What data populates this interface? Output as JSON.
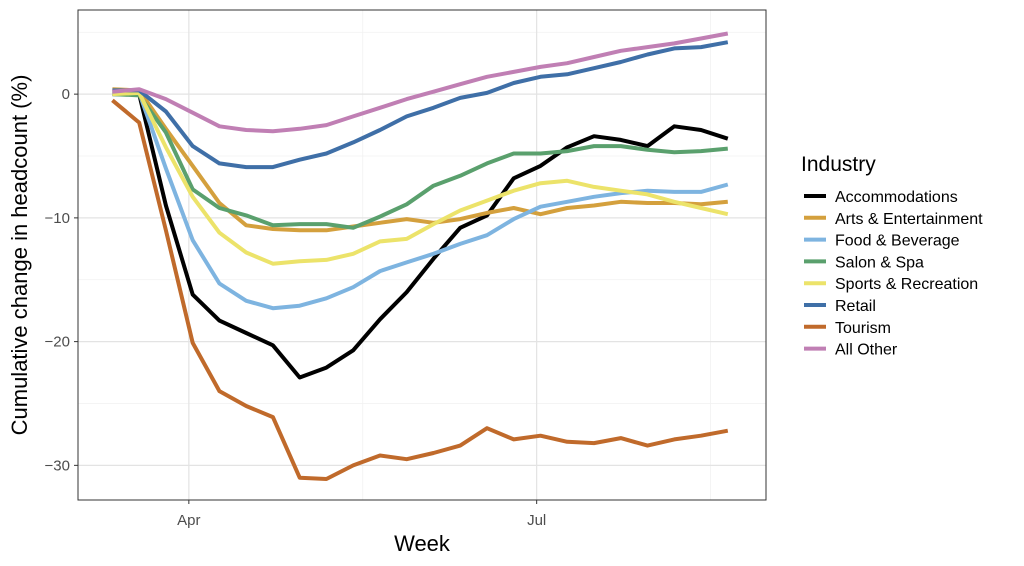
{
  "chart_data": {
    "type": "line",
    "xlabel": "Week",
    "ylabel": "Cumulative change in headcount (%)",
    "x_tick_labels": [
      {
        "date": "2020-04-01",
        "label": "Apr"
      },
      {
        "date": "2020-07-01",
        "label": "Jul"
      }
    ],
    "y_ticks": [
      0,
      -10,
      -20,
      -30
    ],
    "y_tick_labels": [
      "0",
      "−10",
      "−20",
      "−30"
    ],
    "xlim": [
      "2020-03-03",
      "2020-08-30"
    ],
    "ylim": [
      -32.8,
      6.8
    ],
    "grid": true,
    "legend": {
      "title": "Industry",
      "position": "right"
    },
    "x": [
      "2020-03-12",
      "2020-03-19",
      "2020-03-26",
      "2020-04-02",
      "2020-04-09",
      "2020-04-16",
      "2020-04-23",
      "2020-04-30",
      "2020-05-07",
      "2020-05-14",
      "2020-05-21",
      "2020-05-28",
      "2020-06-04",
      "2020-06-11",
      "2020-06-18",
      "2020-06-25",
      "2020-07-02",
      "2020-07-09",
      "2020-07-16",
      "2020-07-23",
      "2020-07-30",
      "2020-08-06",
      "2020-08-13",
      "2020-08-20"
    ],
    "series": [
      {
        "name": "Accommodations",
        "color": "#000000",
        "values": [
          0.0,
          0.0,
          -9.0,
          -16.2,
          -18.3,
          -19.3,
          -20.3,
          -22.9,
          -22.1,
          -20.7,
          -18.2,
          -16.0,
          -13.3,
          -10.8,
          -9.8,
          -6.8,
          -5.8,
          -4.3,
          -3.4,
          -3.7,
          -4.2,
          -2.6,
          -2.9,
          -3.6
        ]
      },
      {
        "name": "Arts & Entertainment",
        "color": "#d4a03d",
        "values": [
          0.4,
          0.3,
          -2.8,
          -5.8,
          -8.8,
          -10.6,
          -10.9,
          -11.0,
          -11.0,
          -10.7,
          -10.4,
          -10.1,
          -10.4,
          -10.1,
          -9.6,
          -9.2,
          -9.7,
          -9.2,
          -9.0,
          -8.7,
          -8.8,
          -8.8,
          -8.9,
          -8.7
        ]
      },
      {
        "name": "Food & Beverage",
        "color": "#7eb4e0",
        "values": [
          0.1,
          0.1,
          -6.0,
          -11.8,
          -15.3,
          -16.7,
          -17.3,
          -17.1,
          -16.5,
          -15.6,
          -14.3,
          -13.6,
          -12.9,
          -12.1,
          -11.4,
          -10.1,
          -9.1,
          -8.7,
          -8.3,
          -8.0,
          -7.8,
          -7.9,
          -7.9,
          -7.3
        ]
      },
      {
        "name": "Salon & Spa",
        "color": "#5aa06d",
        "values": [
          0.0,
          -0.1,
          -3.1,
          -7.7,
          -9.2,
          -9.8,
          -10.6,
          -10.5,
          -10.5,
          -10.8,
          -9.9,
          -8.9,
          -7.4,
          -6.6,
          -5.6,
          -4.8,
          -4.8,
          -4.6,
          -4.2,
          -4.2,
          -4.5,
          -4.7,
          -4.6,
          -4.4
        ]
      },
      {
        "name": "Sports & Recreation",
        "color": "#ece36a",
        "values": [
          0.0,
          0.1,
          -4.3,
          -8.3,
          -11.2,
          -12.8,
          -13.7,
          -13.5,
          -13.4,
          -12.9,
          -11.9,
          -11.7,
          -10.5,
          -9.4,
          -8.6,
          -7.8,
          -7.2,
          -7.0,
          -7.5,
          -7.8,
          -8.1,
          -8.7,
          -9.2,
          -9.7
        ]
      },
      {
        "name": "Retail",
        "color": "#3f6fa7",
        "values": [
          0.3,
          0.3,
          -1.4,
          -4.2,
          -5.6,
          -5.9,
          -5.9,
          -5.3,
          -4.8,
          -3.9,
          -2.9,
          -1.8,
          -1.1,
          -0.3,
          0.1,
          0.9,
          1.4,
          1.6,
          2.1,
          2.6,
          3.2,
          3.7,
          3.8,
          4.2
        ]
      },
      {
        "name": "Tourism",
        "color": "#c06a2b",
        "values": [
          -0.5,
          -2.3,
          -11.0,
          -20.1,
          -24.0,
          -25.2,
          -26.1,
          -31.0,
          -31.1,
          -30.0,
          -29.2,
          -29.5,
          -29.0,
          -28.4,
          -27.0,
          -27.9,
          -27.6,
          -28.1,
          -28.2,
          -27.8,
          -28.4,
          -27.9,
          -27.6,
          -27.2
        ]
      },
      {
        "name": "All Other",
        "color": "#c07fb4",
        "values": [
          0.2,
          0.4,
          -0.4,
          -1.5,
          -2.6,
          -2.9,
          -3.0,
          -2.8,
          -2.5,
          -1.8,
          -1.1,
          -0.4,
          0.2,
          0.8,
          1.4,
          1.8,
          2.2,
          2.5,
          3.0,
          3.5,
          3.8,
          4.1,
          4.5,
          4.9
        ]
      }
    ]
  }
}
